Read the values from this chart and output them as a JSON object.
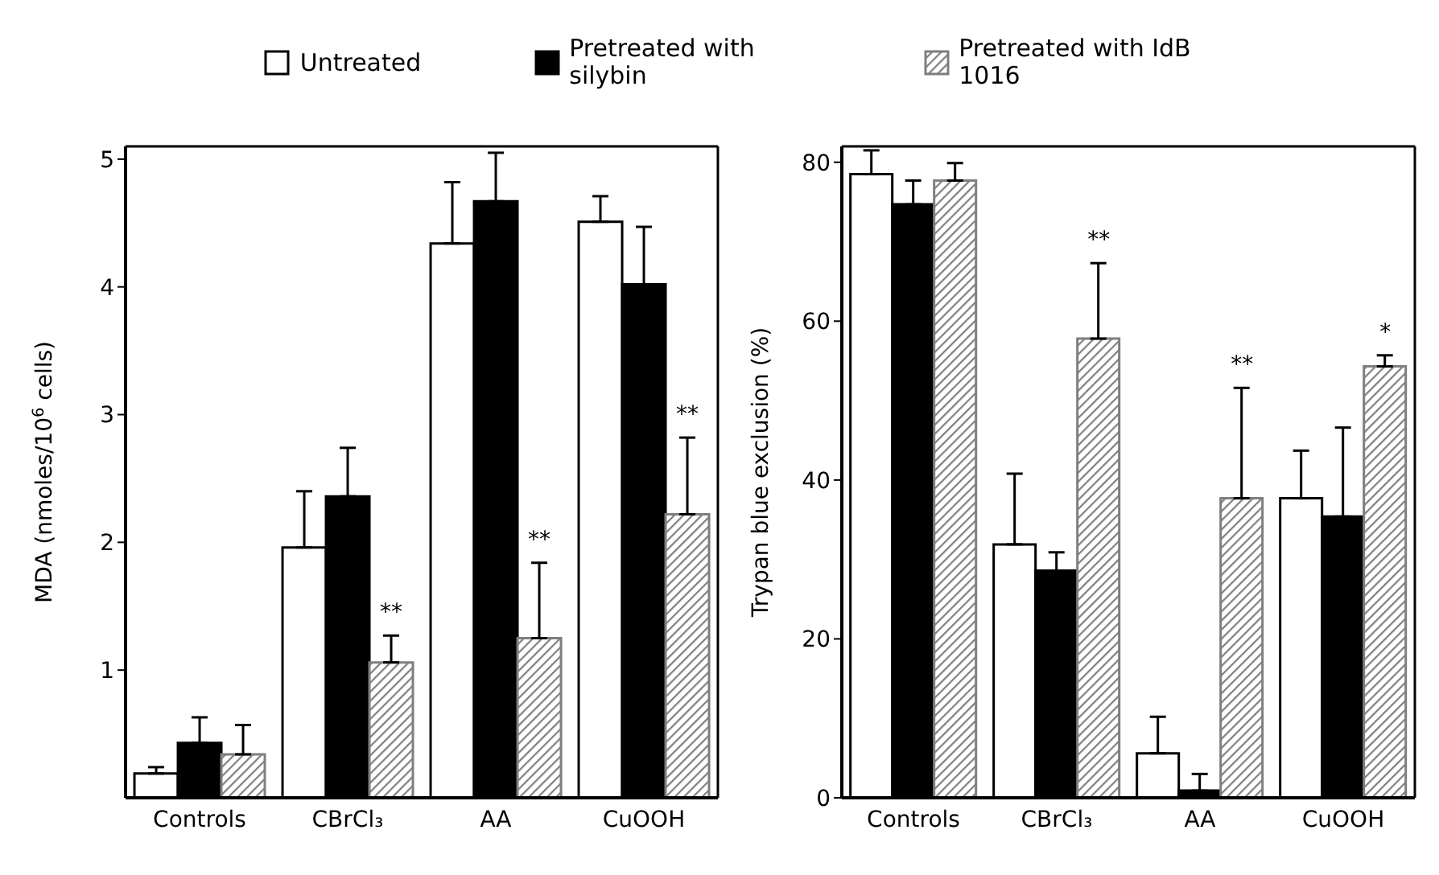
{
  "chart_data": [
    {
      "type": "bar",
      "categories": [
        "Controls",
        "CBrCl₃",
        "AA",
        "CuOOH"
      ],
      "ylabel": "MDA (nmoles/10$^{6}$ cells)",
      "ylim": [
        0,
        5.1
      ],
      "yticks": [
        1,
        2,
        3,
        4,
        5
      ],
      "legend": "top",
      "series": [
        {
          "name": "Untreated",
          "color": "#ffffff",
          "values": [
            0.19,
            1.96,
            4.34,
            4.51
          ],
          "errors": [
            0.05,
            0.44,
            0.48,
            0.2
          ]
        },
        {
          "name": "Pretreated with silybin",
          "color": "#000000",
          "values": [
            0.43,
            2.36,
            4.67,
            4.02
          ],
          "errors": [
            0.2,
            0.38,
            0.38,
            0.45
          ]
        },
        {
          "name": "Pretreated with IdB 1016",
          "color": "#7f7f7f",
          "values": [
            0.34,
            1.06,
            1.25,
            2.22
          ],
          "errors": [
            0.23,
            0.21,
            0.59,
            0.6
          ]
        }
      ],
      "annotations": [
        "**",
        "**",
        "**"
      ]
    },
    {
      "type": "bar",
      "categories": [
        "Controls",
        "CBrCl₃",
        "AA",
        "CuOOH"
      ],
      "ylabel": "Trypan blue exclusion (%)",
      "ylim": [
        0,
        82
      ],
      "yticks": [
        0,
        20,
        40,
        60,
        80
      ],
      "series": [
        {
          "color": "#ffffff",
          "values": [
            78.5,
            31.9,
            5.6,
            37.7
          ],
          "errors": [
            3,
            8.9,
            4.6,
            6
          ]
        },
        {
          "color": "#000000",
          "values": [
            74.7,
            28.6,
            0.9,
            35.4
          ],
          "errors": [
            3,
            2.3,
            2.1,
            11.2
          ]
        },
        {
          "color": "#7f7f7f",
          "values": [
            77.7,
            57.8,
            37.7,
            54.3
          ],
          "errors": [
            2.2,
            9.5,
            13.9,
            1.4
          ]
        }
      ],
      "annotations": [
        "**",
        "**",
        "*"
      ]
    }
  ]
}
